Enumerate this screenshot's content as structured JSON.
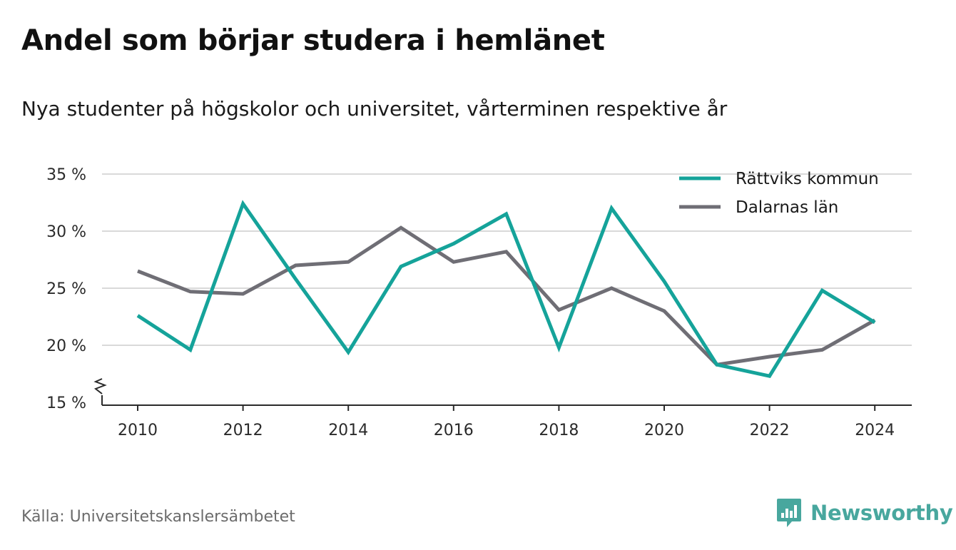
{
  "title": "Andel som börjar studera i hemlänet",
  "subtitle": "Nya studenter på högskolor och universitet, vårterminen respektive år",
  "source": "Källa: Universitetskanslersämbetet",
  "brand": {
    "name": "Newsworthy",
    "icon": "newsworthy-logo-icon",
    "color": "#48a79e"
  },
  "chart_data": {
    "type": "line",
    "title": "Andel som börjar studera i hemlänet",
    "subtitle": "Nya studenter på högskolor och universitet, vårterminen respektive år",
    "x": [
      2010,
      2011,
      2012,
      2013,
      2014,
      2015,
      2016,
      2017,
      2018,
      2019,
      2020,
      2021,
      2022,
      2023,
      2024
    ],
    "x_ticks": [
      "2010",
      "2012",
      "2014",
      "2016",
      "2018",
      "2020",
      "2022",
      "2024"
    ],
    "y_ticks": [
      "15 %",
      "20 %",
      "25 %",
      "30 %",
      "35 %"
    ],
    "ylim": [
      15,
      35
    ],
    "y_axis_break": true,
    "grid": true,
    "legend_position": "top-right",
    "series": [
      {
        "name": "Rättviks kommun",
        "color": "#15a39a",
        "values": [
          22.6,
          19.6,
          32.4,
          25.8,
          19.4,
          26.9,
          28.9,
          31.5,
          19.8,
          32.0,
          25.6,
          18.3,
          17.3,
          24.8,
          22.0
        ]
      },
      {
        "name": "Dalarnas län",
        "color": "#6f6e75",
        "values": [
          26.5,
          24.7,
          24.5,
          27.0,
          27.3,
          30.3,
          27.3,
          28.2,
          23.1,
          25.0,
          23.0,
          18.3,
          19.0,
          19.6,
          22.2
        ]
      }
    ]
  }
}
